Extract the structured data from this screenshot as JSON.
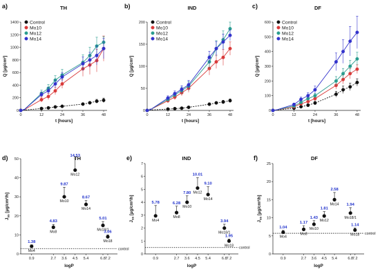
{
  "chart_data": [
    {
      "type": "line",
      "letter": "a)",
      "title": "TH",
      "xlabel": "t [hours]",
      "ylabel": "Q [µg/cm²]",
      "xlim": [
        0,
        50
      ],
      "ylim": [
        0,
        1400
      ],
      "xticks": [
        0,
        12,
        24,
        36,
        48
      ],
      "yticks": [
        0,
        200,
        400,
        600,
        800,
        1000,
        1200,
        1400
      ],
      "legend_placement": "top-left",
      "x": [
        0,
        2,
        12,
        16,
        20,
        24,
        36,
        40,
        44,
        48
      ],
      "series": [
        {
          "name": "Control",
          "color": "#111111",
          "values": [
            0,
            5,
            30,
            40,
            55,
            65,
            100,
            120,
            145,
            160
          ],
          "errors": [
            0,
            2,
            8,
            8,
            10,
            12,
            18,
            22,
            30,
            35
          ]
        },
        {
          "name": "Mo10",
          "color": "#d93a3a",
          "values": [
            0,
            10,
            170,
            220,
            310,
            420,
            660,
            720,
            790,
            980
          ],
          "errors": [
            0,
            4,
            40,
            50,
            60,
            70,
            120,
            150,
            180,
            200
          ]
        },
        {
          "name": "Mo12",
          "color": "#2a9d8f",
          "values": [
            0,
            12,
            270,
            350,
            480,
            560,
            760,
            870,
            1020,
            1080
          ],
          "errors": [
            0,
            4,
            50,
            60,
            70,
            90,
            120,
            130,
            140,
            90
          ]
        },
        {
          "name": "Mo14",
          "color": "#3333cc",
          "values": [
            0,
            12,
            250,
            310,
            420,
            530,
            740,
            800,
            870,
            980
          ],
          "errors": [
            0,
            4,
            40,
            50,
            60,
            70,
            110,
            120,
            150,
            160
          ]
        }
      ]
    },
    {
      "type": "line",
      "letter": "b)",
      "title": "IND",
      "xlabel": "t [hours]",
      "ylabel": "Q [µg/cm²]",
      "xlim": [
        0,
        50
      ],
      "ylim": [
        0,
        200
      ],
      "xticks": [
        0,
        12,
        24,
        36,
        48
      ],
      "yticks": [
        0,
        50,
        100,
        150,
        200
      ],
      "legend_placement": "top-left",
      "x": [
        0,
        2,
        12,
        16,
        20,
        24,
        36,
        40,
        44,
        48
      ],
      "series": [
        {
          "name": "Control",
          "color": "#111111",
          "values": [
            0,
            1,
            3,
            4,
            5,
            7,
            14,
            17,
            19,
            22
          ],
          "errors": [
            0,
            0.5,
            1,
            1,
            1.5,
            2,
            3,
            3,
            4,
            4
          ]
        },
        {
          "name": "Mo10",
          "color": "#d93a3a",
          "values": [
            0,
            2,
            22,
            30,
            40,
            50,
            95,
            110,
            120,
            140
          ],
          "errors": [
            0,
            1,
            5,
            6,
            7,
            9,
            15,
            15,
            18,
            15
          ]
        },
        {
          "name": "Mo12",
          "color": "#2a9d8f",
          "values": [
            0,
            2,
            25,
            35,
            45,
            55,
            110,
            140,
            160,
            185
          ],
          "errors": [
            0,
            1,
            5,
            6,
            8,
            10,
            15,
            18,
            20,
            15
          ]
        },
        {
          "name": "Mo14",
          "color": "#3333cc",
          "values": [
            0,
            2,
            28,
            38,
            48,
            58,
            120,
            140,
            155,
            170
          ],
          "errors": [
            0,
            1,
            5,
            6,
            8,
            10,
            14,
            16,
            18,
            12
          ]
        }
      ]
    },
    {
      "type": "line",
      "letter": "c)",
      "title": "DF",
      "xlabel": "t [hours]",
      "ylabel": "Q [µg/cm²]",
      "xlim": [
        0,
        50
      ],
      "ylim": [
        0,
        600
      ],
      "xticks": [
        0,
        12,
        24,
        36,
        48
      ],
      "yticks": [
        0,
        100,
        200,
        300,
        400,
        500,
        600
      ],
      "legend_placement": "top-left",
      "x": [
        0,
        2,
        12,
        16,
        20,
        24,
        36,
        40,
        44,
        48
      ],
      "series": [
        {
          "name": "Control",
          "color": "#111111",
          "values": [
            0,
            2,
            15,
            25,
            35,
            50,
            110,
            140,
            160,
            190
          ],
          "errors": [
            0,
            1,
            5,
            8,
            10,
            12,
            20,
            25,
            25,
            25
          ]
        },
        {
          "name": "Mo10",
          "color": "#d93a3a",
          "values": [
            0,
            3,
            25,
            45,
            60,
            80,
            170,
            210,
            250,
            280
          ],
          "errors": [
            0,
            1,
            8,
            10,
            12,
            15,
            25,
            30,
            35,
            30
          ]
        },
        {
          "name": "Mo12",
          "color": "#2a9d8f",
          "values": [
            0,
            3,
            30,
            55,
            80,
            100,
            200,
            250,
            300,
            350
          ],
          "errors": [
            0,
            1,
            8,
            10,
            12,
            15,
            30,
            35,
            40,
            45
          ]
        },
        {
          "name": "Mo14",
          "color": "#3333cc",
          "values": [
            0,
            3,
            40,
            75,
            100,
            140,
            330,
            400,
            470,
            530
          ],
          "errors": [
            0,
            1,
            10,
            15,
            20,
            25,
            60,
            80,
            100,
            110
          ]
        }
      ]
    },
    {
      "type": "scatter",
      "letter": "d)",
      "title": "TH",
      "xlabel": "logP",
      "ylabel": "J_ss [µg/cm²/h]",
      "xlim": [
        0,
        8
      ],
      "ylim": [
        0,
        50
      ],
      "xticks": [
        0.9,
        2.7,
        3.6,
        4.5,
        5.4,
        6.8,
        7.2
      ],
      "yticks": [
        0,
        10,
        20,
        30,
        40,
        50
      ],
      "control_label": "control",
      "control_level": 2.8,
      "points": [
        {
          "label": "Mo4",
          "x": 0.9,
          "y": 4,
          "err": 0.8,
          "enhancement": "1.38"
        },
        {
          "label": "Mo8",
          "x": 2.7,
          "y": 14,
          "err": 1.5,
          "enhancement": "4.83"
        },
        {
          "label": "Mo10",
          "x": 3.6,
          "y": 30,
          "err": 5,
          "enhancement": "9.87"
        },
        {
          "label": "Mo12",
          "x": 4.5,
          "y": 44,
          "err": 6,
          "enhancement": "14.53"
        },
        {
          "label": "Mo14",
          "x": 5.4,
          "y": 26,
          "err": 2,
          "enhancement": "8.67"
        },
        {
          "label": "Mo18/1",
          "x": 6.8,
          "y": 15,
          "err": 2,
          "enhancement": "5.01"
        },
        {
          "label": "Mo18",
          "x": 7.2,
          "y": 9,
          "err": 1,
          "enhancement": "3.06"
        }
      ]
    },
    {
      "type": "scatter",
      "letter": "e)",
      "title": "IND",
      "xlabel": "logP",
      "ylabel": "J_ss [µg/cm²/h]",
      "xlim": [
        0,
        8
      ],
      "ylim": [
        0,
        7
      ],
      "xticks": [
        0.9,
        2.7,
        3.6,
        4.5,
        5.4,
        6.8,
        7.2
      ],
      "yticks": [
        0,
        1,
        2,
        3,
        4,
        5,
        6,
        7
      ],
      "control_label": "control",
      "control_level": 0.5,
      "points": [
        {
          "label": "Mo4",
          "x": 0.9,
          "y": 2.95,
          "err": 0.8,
          "enhancement": "5.78"
        },
        {
          "label": "Mo8",
          "x": 2.7,
          "y": 3.2,
          "err": 0.5,
          "enhancement": "6.28"
        },
        {
          "label": "Mo10",
          "x": 3.6,
          "y": 4.0,
          "err": 0.5,
          "enhancement": "7.80"
        },
        {
          "label": "Mo12",
          "x": 4.5,
          "y": 5.1,
          "err": 0.8,
          "enhancement": "10.01"
        },
        {
          "label": "Mo14",
          "x": 5.4,
          "y": 4.6,
          "err": 0.6,
          "enhancement": "9.10"
        },
        {
          "label": "Mo18/1",
          "x": 6.8,
          "y": 2.0,
          "err": 0.3,
          "enhancement": "3.94"
        },
        {
          "label": "Mo18",
          "x": 7.2,
          "y": 1.0,
          "err": 0.15,
          "enhancement": "1.95"
        }
      ]
    },
    {
      "type": "scatter",
      "letter": "f)",
      "title": "DF",
      "xlabel": "logP",
      "ylabel": "J_ss [µg/cm²/h]",
      "xlim": [
        0,
        8
      ],
      "ylim": [
        0,
        25
      ],
      "xticks": [
        0.9,
        2.7,
        3.6,
        4.5,
        5.4,
        6.8,
        7.2
      ],
      "yticks": [
        0,
        5,
        10,
        15,
        20,
        25
      ],
      "control_label": "control",
      "control_level": 5.7,
      "points": [
        {
          "label": "Mo4",
          "x": 0.9,
          "y": 6.0,
          "err": 0.5,
          "enhancement": "1.04"
        },
        {
          "label": "Mo8",
          "x": 2.7,
          "y": 6.8,
          "err": 1.0,
          "enhancement": "1.17"
        },
        {
          "label": "Mo10",
          "x": 3.6,
          "y": 8.2,
          "err": 1.0,
          "enhancement": "1.43"
        },
        {
          "label": "Mo12",
          "x": 4.5,
          "y": 10.5,
          "err": 1.2,
          "enhancement": "1.81"
        },
        {
          "label": "Mo14",
          "x": 5.4,
          "y": 15.0,
          "err": 2.0,
          "enhancement": "2.58"
        },
        {
          "label": "Mo18/1",
          "x": 6.8,
          "y": 11.3,
          "err": 1.5,
          "enhancement": "1.94"
        },
        {
          "label": "Mo18",
          "x": 7.2,
          "y": 6.6,
          "err": 0.6,
          "enhancement": "1.14"
        }
      ]
    }
  ]
}
